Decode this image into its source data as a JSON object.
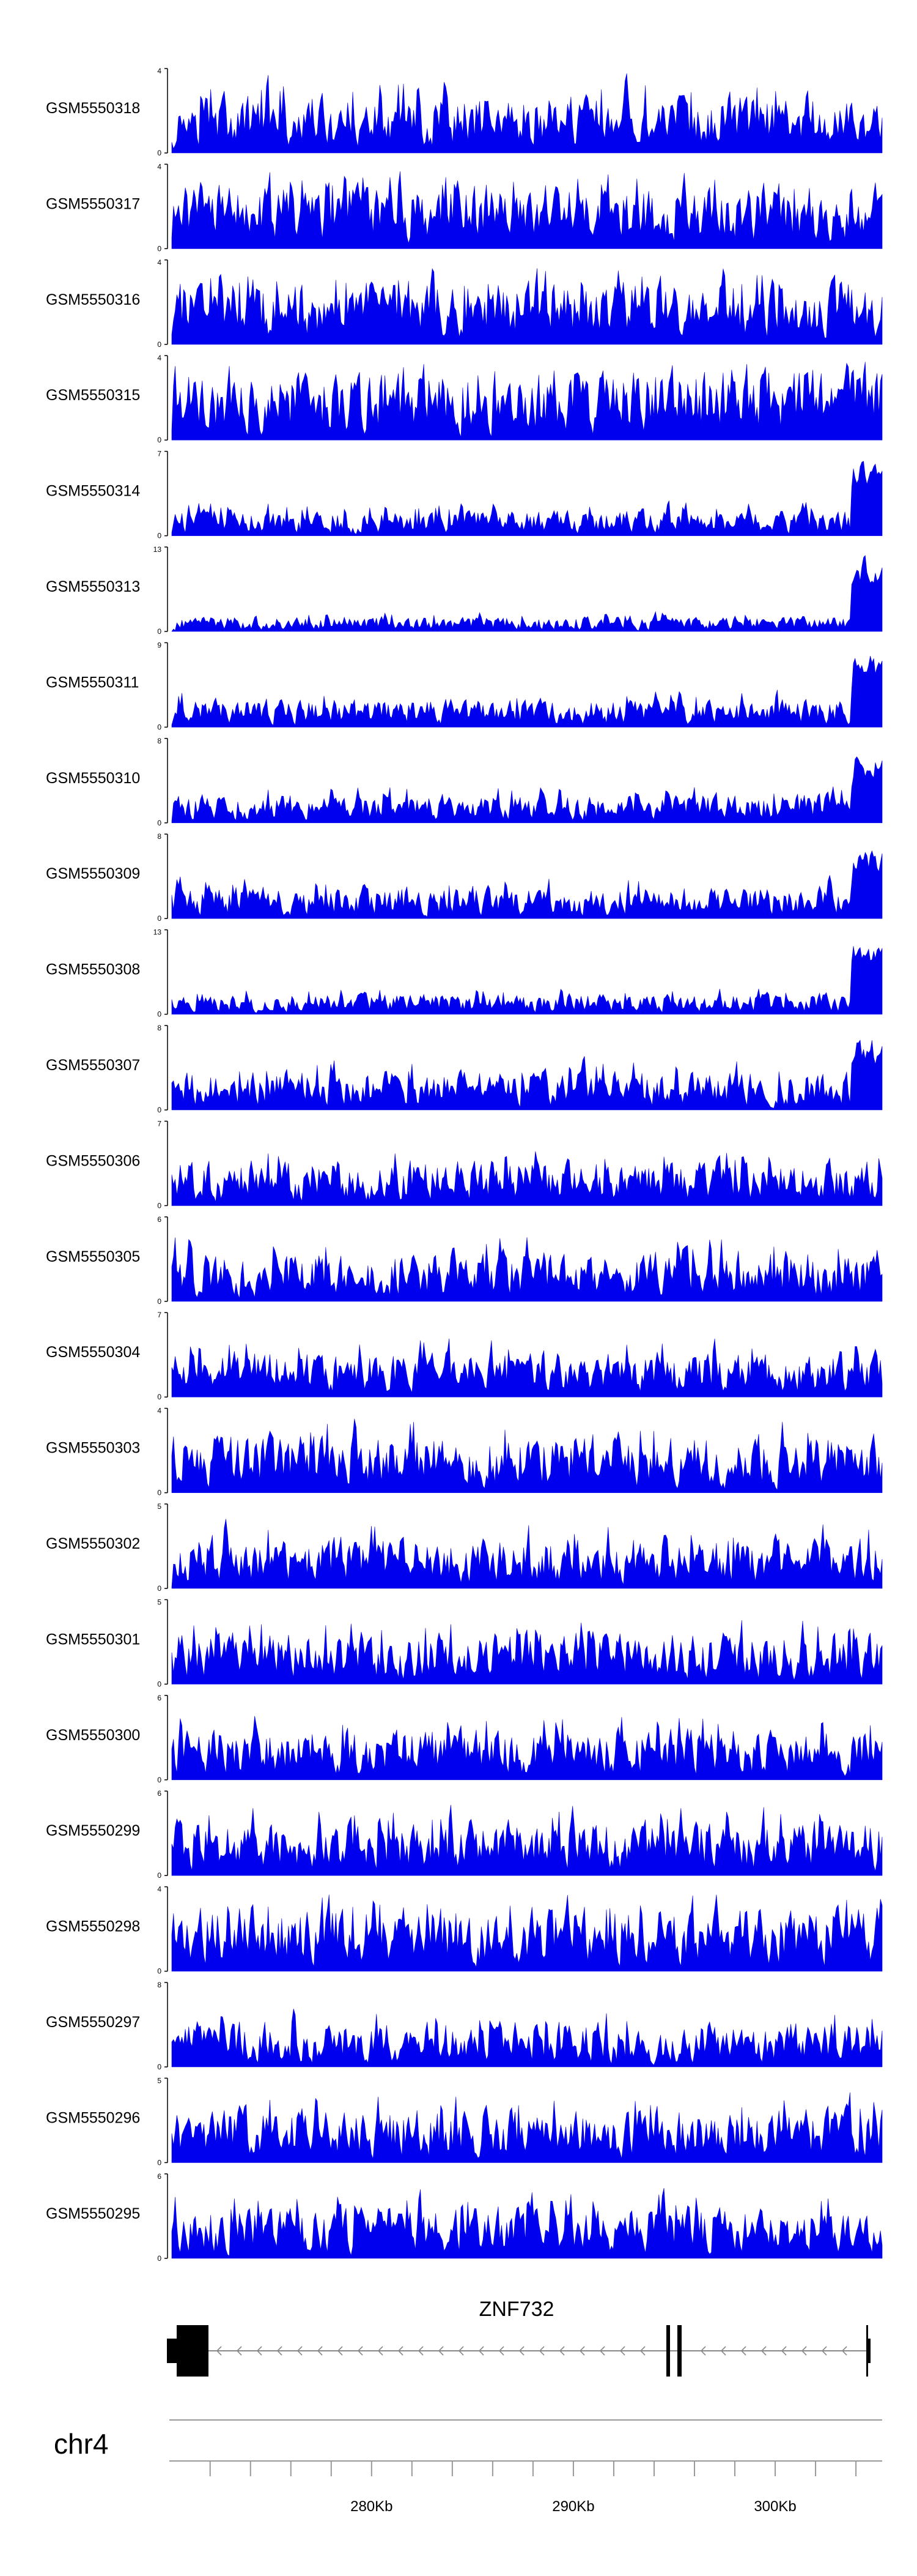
{
  "chart_data": {
    "type": "area",
    "title": "",
    "xlabel": "",
    "ylabel": "",
    "fill_color": "#0000ee",
    "tracks": [
      {
        "name": "GSM5550318",
        "ymax": "4",
        "ymin": "0",
        "level": 0.45,
        "seed": 318
      },
      {
        "name": "GSM5550317",
        "ymax": "4",
        "ymin": "0",
        "level": 0.5,
        "seed": 317
      },
      {
        "name": "GSM5550316",
        "ymax": "4",
        "ymin": "0",
        "level": 0.5,
        "seed": 316
      },
      {
        "name": "GSM5550315",
        "ymax": "4",
        "ymin": "0",
        "level": 0.55,
        "seed": 315
      },
      {
        "name": "GSM5550314",
        "ymax": "7",
        "ymin": "0",
        "level": 0.2,
        "seed": 314,
        "end_peak": 0.95
      },
      {
        "name": "GSM5550313",
        "ymax": "13",
        "ymin": "0",
        "level": 0.12,
        "seed": 313,
        "end_peak": 0.95
      },
      {
        "name": "GSM5550311",
        "ymax": "9",
        "ymin": "0",
        "level": 0.22,
        "seed": 311,
        "end_peak": 0.95
      },
      {
        "name": "GSM5550310",
        "ymax": "8",
        "ymin": "0",
        "level": 0.22,
        "seed": 310,
        "end_peak": 0.9
      },
      {
        "name": "GSM5550309",
        "ymax": "8",
        "ymin": "0",
        "level": 0.25,
        "seed": 309,
        "end_peak": 0.95
      },
      {
        "name": "GSM5550308",
        "ymax": "13",
        "ymin": "0",
        "level": 0.16,
        "seed": 308,
        "end_peak": 0.92
      },
      {
        "name": "GSM5550307",
        "ymax": "8",
        "ymin": "0",
        "level": 0.3,
        "seed": 307,
        "end_peak": 0.9
      },
      {
        "name": "GSM5550306",
        "ymax": "7",
        "ymin": "0",
        "level": 0.35,
        "seed": 306
      },
      {
        "name": "GSM5550305",
        "ymax": "6",
        "ymin": "0",
        "level": 0.4,
        "seed": 305
      },
      {
        "name": "GSM5550304",
        "ymax": "7",
        "ymin": "0",
        "level": 0.35,
        "seed": 304
      },
      {
        "name": "GSM5550303",
        "ymax": "4",
        "ymin": "0",
        "level": 0.45,
        "seed": 303
      },
      {
        "name": "GSM5550302",
        "ymax": "5",
        "ymin": "0",
        "level": 0.4,
        "seed": 302
      },
      {
        "name": "GSM5550301",
        "ymax": "5",
        "ymin": "0",
        "level": 0.4,
        "seed": 301
      },
      {
        "name": "GSM5550300",
        "ymax": "6",
        "ymin": "0",
        "level": 0.4,
        "seed": 300
      },
      {
        "name": "GSM5550299",
        "ymax": "6",
        "ymin": "0",
        "level": 0.42,
        "seed": 299
      },
      {
        "name": "GSM5550298",
        "ymax": "4",
        "ymin": "0",
        "level": 0.5,
        "seed": 298
      },
      {
        "name": "GSM5550297",
        "ymax": "8",
        "ymin": "0",
        "level": 0.35,
        "seed": 297
      },
      {
        "name": "GSM5550296",
        "ymax": "5",
        "ymin": "0",
        "level": 0.42,
        "seed": 296
      },
      {
        "name": "GSM5550295",
        "ymax": "6",
        "ymin": "0",
        "level": 0.4,
        "seed": 295
      }
    ],
    "gene": {
      "name": "ZNF732",
      "strand": "-"
    },
    "chromosome": "chr4",
    "x_range_kb": [
      270.1,
      305.3
    ],
    "ticks_kb": [
      272,
      274,
      276,
      278,
      280,
      282,
      284,
      286,
      288,
      290,
      292,
      294,
      296,
      298,
      300,
      302,
      304
    ],
    "tick_labels": [
      {
        "value_kb": 280,
        "label": "280Kb"
      },
      {
        "value_kb": 290,
        "label": "290Kb"
      },
      {
        "value_kb": 300,
        "label": "300Kb"
      }
    ]
  }
}
